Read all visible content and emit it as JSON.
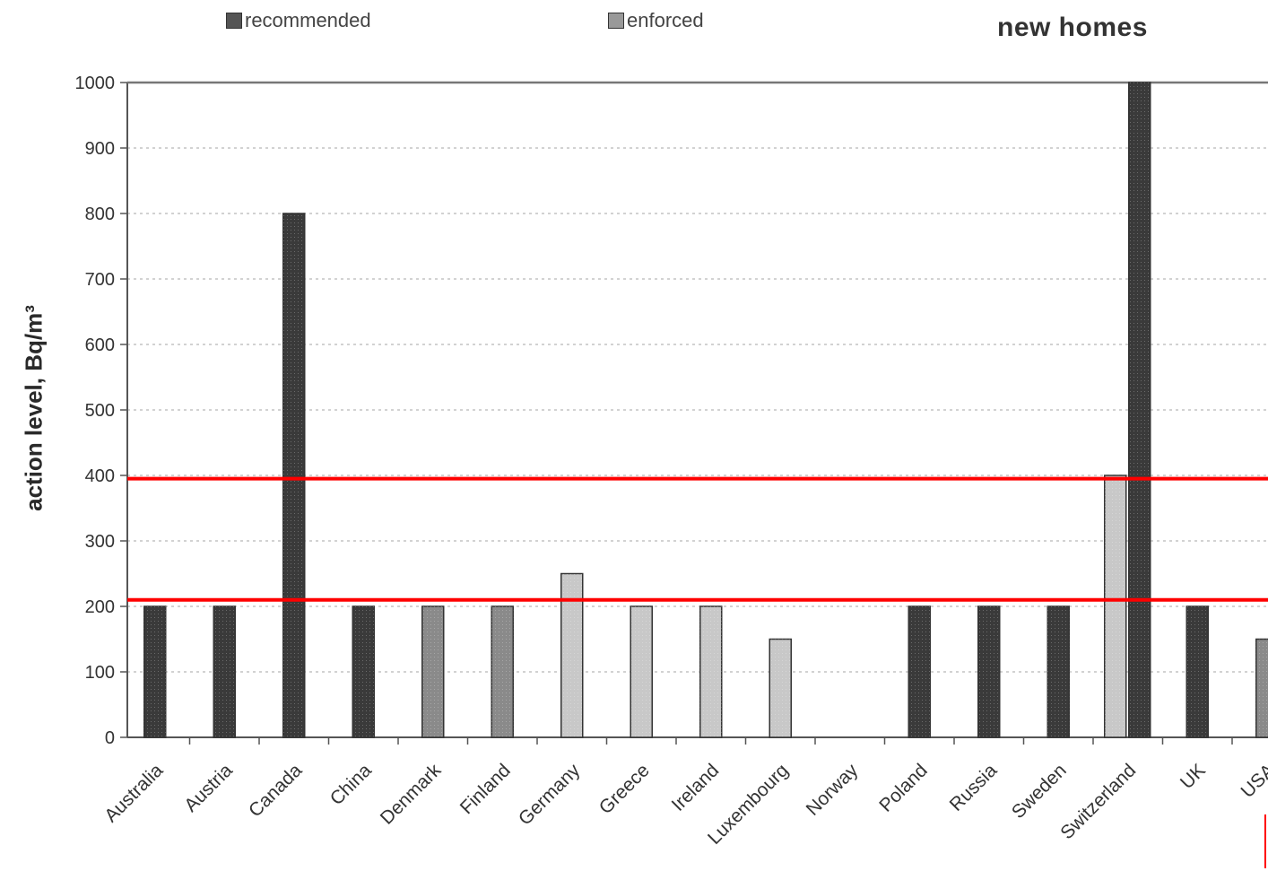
{
  "legend": {
    "recommended_label": "recommended",
    "enforced_label": "enforced"
  },
  "title": "new homes",
  "colors": {
    "recommended": "#3a3a3a",
    "enforced": "#8a8a8a",
    "enforced_light": "#c8c8c8",
    "reference_line": "#ff0000"
  },
  "chart_data": {
    "type": "bar",
    "title": "new homes",
    "xlabel": "",
    "ylabel": "action level, Bq/m³",
    "ylim": [
      0,
      1000
    ],
    "yticks": [
      0,
      100,
      200,
      300,
      400,
      500,
      600,
      700,
      800,
      900,
      1000
    ],
    "grid": true,
    "legend_placement": "top",
    "categories": [
      "Australia",
      "Austria",
      "Canada",
      "China",
      "Denmark",
      "Finland",
      "Germany",
      "Greece",
      "Ireland",
      "Luxembourg",
      "Norway",
      "Poland",
      "Russia",
      "Sweden",
      "Switzerland",
      "UK",
      "USA"
    ],
    "bars": [
      {
        "category": "Australia",
        "value": 200,
        "kind": "recommended"
      },
      {
        "category": "Austria",
        "value": 200,
        "kind": "recommended"
      },
      {
        "category": "Canada",
        "value": 800,
        "kind": "recommended"
      },
      {
        "category": "China",
        "value": 200,
        "kind": "recommended"
      },
      {
        "category": "Denmark",
        "value": 200,
        "kind": "enforced"
      },
      {
        "category": "Finland",
        "value": 200,
        "kind": "enforced"
      },
      {
        "category": "Germany",
        "value": 250,
        "kind": "enforced_light"
      },
      {
        "category": "Greece",
        "value": 200,
        "kind": "enforced_light"
      },
      {
        "category": "Ireland",
        "value": 200,
        "kind": "enforced_light"
      },
      {
        "category": "Luxembourg",
        "value": 150,
        "kind": "enforced_light"
      },
      {
        "category": "Poland",
        "value": 200,
        "kind": "recommended"
      },
      {
        "category": "Russia",
        "value": 200,
        "kind": "recommended"
      },
      {
        "category": "Sweden",
        "value": 200,
        "kind": "recommended"
      },
      {
        "category": "Switzerland",
        "value": 400,
        "kind": "enforced_light"
      },
      {
        "category": "Switzerland",
        "value": 1000,
        "kind": "recommended"
      },
      {
        "category": "UK",
        "value": 200,
        "kind": "recommended"
      },
      {
        "category": "USA",
        "value": 150,
        "kind": "enforced"
      }
    ],
    "reference_lines": [
      395,
      210
    ]
  }
}
